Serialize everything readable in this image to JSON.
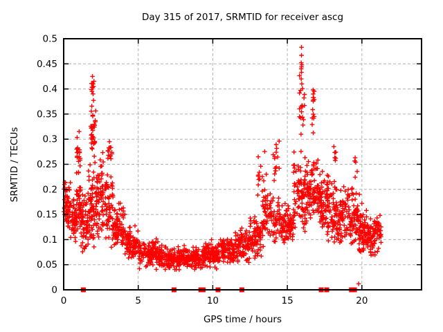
{
  "chart_data": {
    "type": "scatter",
    "title": "Day 315 of 2017, SRMTID for receiver ascg",
    "xlabel": "GPS time / hours",
    "ylabel": "SRMTID / TECUs",
    "xlim": [
      0,
      24
    ],
    "ylim": [
      0,
      0.5
    ],
    "x_ticks": [
      {
        "v": 0,
        "label": "0"
      },
      {
        "v": 5,
        "label": "5"
      },
      {
        "v": 10,
        "label": "10"
      },
      {
        "v": 15,
        "label": "15"
      },
      {
        "v": 20,
        "label": "20"
      }
    ],
    "y_ticks": [
      {
        "v": 0,
        "label": "0"
      },
      {
        "v": 0.05,
        "label": "0.05"
      },
      {
        "v": 0.1,
        "label": "0.1"
      },
      {
        "v": 0.15,
        "label": "0.15"
      },
      {
        "v": 0.2,
        "label": "0.2"
      },
      {
        "v": 0.25,
        "label": "0.25"
      },
      {
        "v": 0.3,
        "label": "0.3"
      },
      {
        "v": 0.35,
        "label": "0.35"
      },
      {
        "v": 0.4,
        "label": "0.4"
      },
      {
        "v": 0.45,
        "label": "0.45"
      },
      {
        "v": 0.5,
        "label": "0.5"
      }
    ],
    "grid": true,
    "grid_color": "#b0b0b0",
    "border_color": "#000000",
    "marker": {
      "shape": "plus",
      "color": "#ff0000",
      "size": 7
    },
    "axis_event_marker": {
      "shape": "filled-square",
      "color": "#ff0000",
      "size": 7,
      "y": 0
    },
    "axis_event_hours": [
      1.32,
      7.4,
      9.2,
      9.35,
      10.35,
      11.95,
      17.27,
      17.64,
      19.3,
      19.5
    ],
    "seed": 315,
    "x_quantum_hours": 0.0333,
    "envelope_segments": [
      {
        "x0": 0.0,
        "x1": 0.45,
        "ylo": 0.1,
        "yhi": 0.225,
        "n": 55
      },
      {
        "x0": 0.45,
        "x1": 0.85,
        "ylo": 0.09,
        "yhi": 0.19,
        "n": 45
      },
      {
        "x0": 0.85,
        "x1": 1.15,
        "ylo": 0.1,
        "yhi": 0.22,
        "n": 40
      },
      {
        "x0": 0.85,
        "x1": 1.1,
        "ylo": 0.22,
        "yhi": 0.325,
        "n": 22
      },
      {
        "x0": 1.15,
        "x1": 1.65,
        "ylo": 0.07,
        "yhi": 0.2,
        "n": 60
      },
      {
        "x0": 1.65,
        "x1": 2.3,
        "ylo": 0.08,
        "yhi": 0.26,
        "n": 85
      },
      {
        "x0": 1.8,
        "x1": 2.15,
        "ylo": 0.26,
        "yhi": 0.37,
        "n": 30
      },
      {
        "x0": 1.85,
        "x1": 2.05,
        "ylo": 0.37,
        "yhi": 0.425,
        "n": 8
      },
      {
        "x0": 2.3,
        "x1": 2.65,
        "ylo": 0.09,
        "yhi": 0.3,
        "n": 45
      },
      {
        "x0": 2.65,
        "x1": 3.35,
        "ylo": 0.08,
        "yhi": 0.24,
        "n": 60
      },
      {
        "x0": 2.95,
        "x1": 3.25,
        "ylo": 0.24,
        "yhi": 0.3,
        "n": 14
      },
      {
        "x0": 3.35,
        "x1": 4.1,
        "ylo": 0.07,
        "yhi": 0.18,
        "n": 70
      },
      {
        "x0": 4.1,
        "x1": 5.0,
        "ylo": 0.055,
        "yhi": 0.135,
        "n": 85
      },
      {
        "x0": 5.0,
        "x1": 6.5,
        "ylo": 0.04,
        "yhi": 0.105,
        "n": 130
      },
      {
        "x0": 6.5,
        "x1": 9.5,
        "ylo": 0.035,
        "yhi": 0.09,
        "n": 250
      },
      {
        "x0": 9.5,
        "x1": 10.5,
        "ylo": 0.04,
        "yhi": 0.1,
        "n": 85
      },
      {
        "x0": 10.5,
        "x1": 11.5,
        "ylo": 0.05,
        "yhi": 0.11,
        "n": 85
      },
      {
        "x0": 11.5,
        "x1": 12.5,
        "ylo": 0.05,
        "yhi": 0.125,
        "n": 85
      },
      {
        "x0": 12.5,
        "x1": 13.3,
        "ylo": 0.06,
        "yhi": 0.15,
        "n": 75
      },
      {
        "x0": 13.0,
        "x1": 13.7,
        "ylo": 0.15,
        "yhi": 0.3,
        "n": 18
      },
      {
        "x0": 13.3,
        "x1": 14.5,
        "ylo": 0.08,
        "yhi": 0.2,
        "n": 90
      },
      {
        "x0": 14.0,
        "x1": 14.45,
        "ylo": 0.2,
        "yhi": 0.31,
        "n": 14
      },
      {
        "x0": 14.5,
        "x1": 15.4,
        "ylo": 0.085,
        "yhi": 0.175,
        "n": 85
      },
      {
        "x0": 15.4,
        "x1": 16.3,
        "ylo": 0.1,
        "yhi": 0.28,
        "n": 95
      },
      {
        "x0": 15.8,
        "x1": 16.15,
        "ylo": 0.28,
        "yhi": 0.44,
        "n": 18
      },
      {
        "x0": 16.3,
        "x1": 17.1,
        "ylo": 0.12,
        "yhi": 0.27,
        "n": 85
      },
      {
        "x0": 16.65,
        "x1": 16.85,
        "ylo": 0.3,
        "yhi": 0.4,
        "n": 12
      },
      {
        "x0": 17.1,
        "x1": 17.7,
        "ylo": 0.1,
        "yhi": 0.25,
        "n": 70
      },
      {
        "x0": 17.7,
        "x1": 18.4,
        "ylo": 0.09,
        "yhi": 0.23,
        "n": 70
      },
      {
        "x0": 18.1,
        "x1": 18.25,
        "ylo": 0.23,
        "yhi": 0.3,
        "n": 6
      },
      {
        "x0": 18.4,
        "x1": 19.2,
        "ylo": 0.08,
        "yhi": 0.21,
        "n": 70
      },
      {
        "x0": 19.2,
        "x1": 19.8,
        "ylo": 0.07,
        "yhi": 0.21,
        "n": 60
      },
      {
        "x0": 19.5,
        "x1": 19.7,
        "ylo": 0.22,
        "yhi": 0.285,
        "n": 5
      },
      {
        "x0": 19.8,
        "x1": 21.3,
        "ylo": 0.065,
        "yhi": 0.155,
        "n": 150
      }
    ],
    "peak_points": [
      [
        15.95,
        0.483
      ],
      [
        15.95,
        0.467
      ],
      [
        15.93,
        0.452
      ],
      [
        15.97,
        0.448
      ],
      [
        15.95,
        0.444
      ],
      [
        15.93,
        0.44
      ],
      [
        15.95,
        0.433
      ],
      [
        15.93,
        0.42
      ],
      [
        15.97,
        0.41
      ],
      [
        16.73,
        0.398
      ],
      [
        16.73,
        0.39
      ],
      [
        16.76,
        0.383
      ],
      [
        1.93,
        0.425
      ],
      [
        1.9,
        0.411
      ],
      [
        1.93,
        0.403
      ],
      [
        1.9,
        0.395
      ],
      [
        19.78,
        0.012
      ],
      [
        19.83,
        0.19
      ],
      [
        20.0,
        0.172
      ],
      [
        20.3,
        0.158
      ]
    ]
  }
}
